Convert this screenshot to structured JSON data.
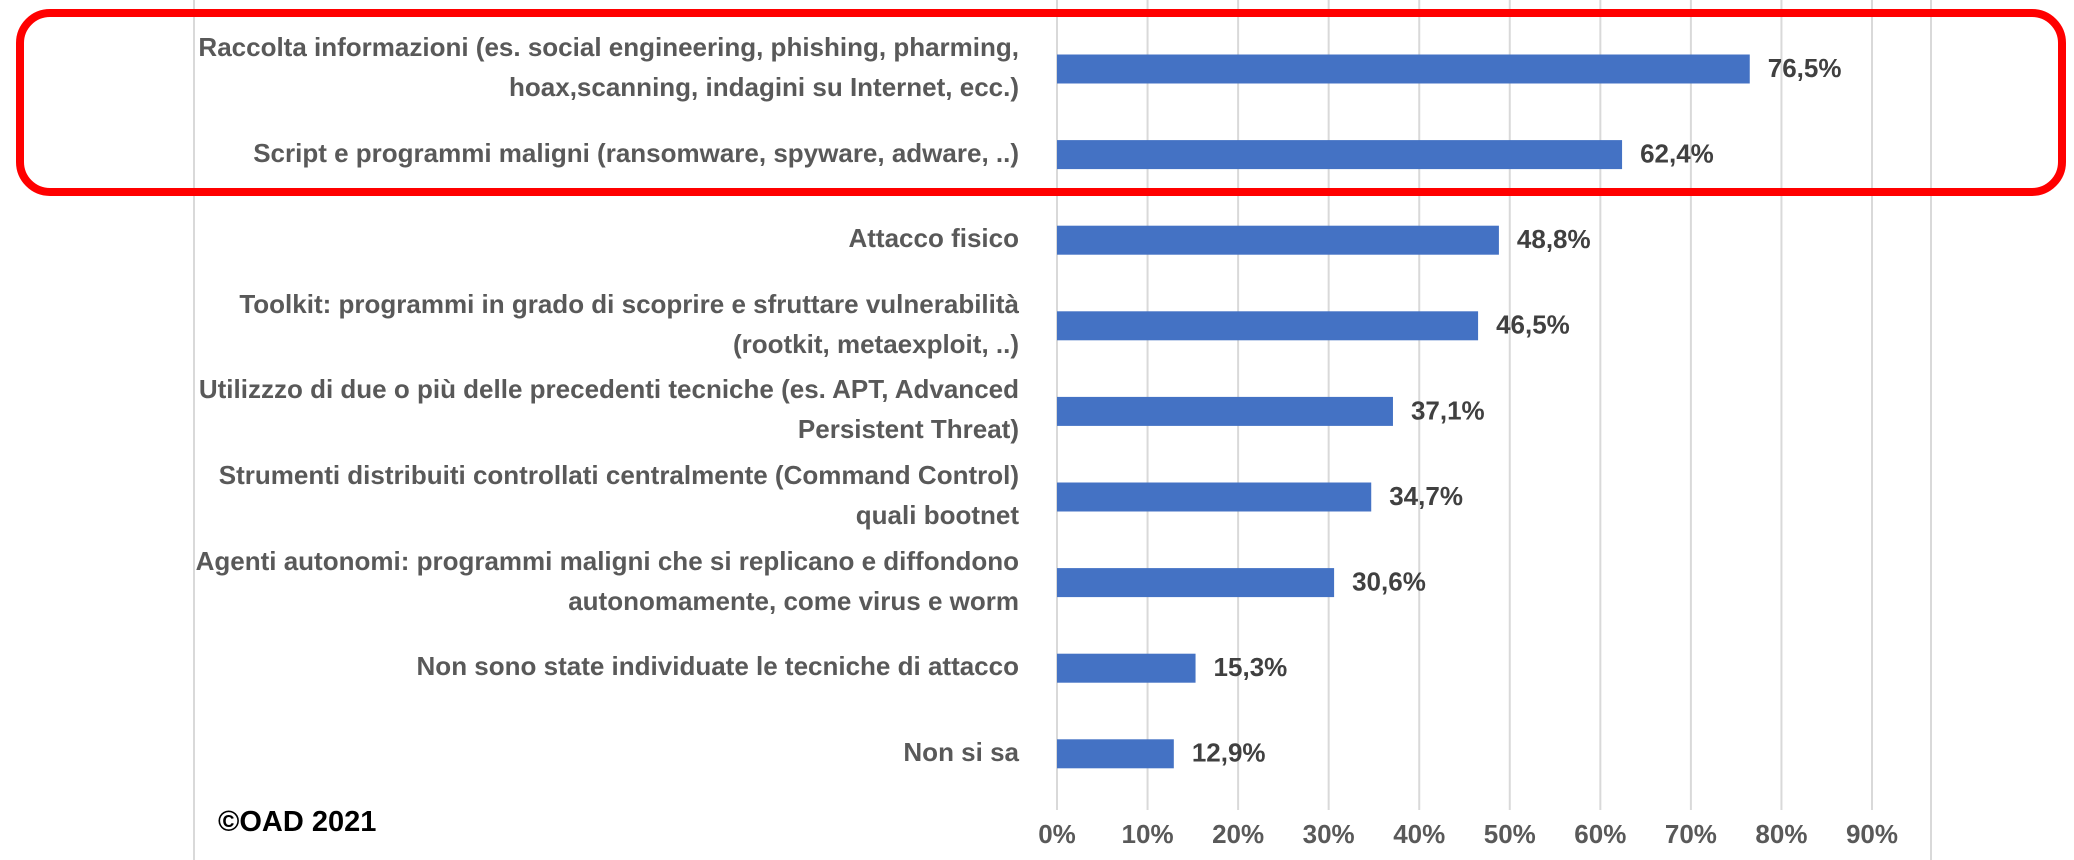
{
  "chart_data": {
    "type": "barh",
    "categories": [
      "Raccolta informazioni (es. social engineering, phishing, pharming, hoax,scanning, indagini su Internet, ecc.)",
      "Script e programmi maligni (ransomware, spyware, adware, ..)",
      "Attacco fisico",
      "Toolkit: programmi in grado di scoprire e sfruttare vulnerabilità (rootkit, metaexploit, ..)",
      "Utilizzzo di due o più delle precedenti tecniche (es. APT, Advanced Persistent Threat)",
      "Strumenti distribuiti controllati centralmente (Command Control) quali bootnet",
      "Agenti autonomi: programmi maligni che si replicano e diffondono autonomamente, come virus e worm",
      "Non sono state individuate le tecniche di attacco",
      "Non si sa"
    ],
    "values": [
      76.5,
      62.4,
      48.8,
      46.5,
      37.1,
      34.7,
      30.6,
      15.3,
      12.9
    ],
    "value_labels": [
      "76,5%",
      "62,4%",
      "48,8%",
      "46,5%",
      "37,1%",
      "34,7%",
      "30,6%",
      "15,3%",
      "12,9%"
    ],
    "color": "#4472c4",
    "xlim": [
      0,
      90
    ],
    "xticks": [
      {
        "value": 0,
        "label": "0%"
      },
      {
        "value": 10,
        "label": "10%"
      },
      {
        "value": 20,
        "label": "20%"
      },
      {
        "value": 30,
        "label": "30%"
      },
      {
        "value": 40,
        "label": "40%"
      },
      {
        "value": 50,
        "label": "50%"
      },
      {
        "value": 60,
        "label": "60%"
      },
      {
        "value": 70,
        "label": "70%"
      },
      {
        "value": 80,
        "label": "80%"
      },
      {
        "value": 90,
        "label": "90%"
      }
    ],
    "grid": true,
    "annotation": "©OAD 2021"
  }
}
